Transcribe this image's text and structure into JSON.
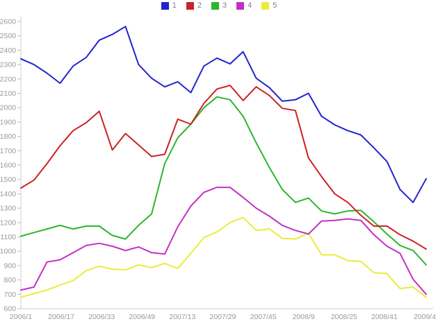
{
  "chart_data": {
    "type": "line",
    "title": "",
    "xlabel": "",
    "ylabel": "",
    "ylim": [
      600,
      2600
    ],
    "ytick_step": 100,
    "grid": false,
    "legend_position": "top",
    "axis_color": "#cccccc",
    "tick_label_color": "#999999",
    "legend_text_color": "#808080",
    "x_tick_labels": [
      "2006/1",
      "2006/17",
      "2006/33",
      "2006/49",
      "2007/13",
      "2007/29",
      "2007/45",
      "2008/9",
      "2008/25",
      "2008/41",
      "2009/4"
    ],
    "series": [
      {
        "name": "1",
        "color": "#2323cd",
        "values": [
          2340,
          2300,
          2240,
          2170,
          2290,
          2350,
          2470,
          2510,
          2565,
          2300,
          2205,
          2145,
          2180,
          2105,
          2290,
          2345,
          2305,
          2390,
          2205,
          2140,
          2045,
          2055,
          2100,
          1940,
          1880,
          1840,
          1810,
          1720,
          1625,
          1430,
          1340,
          1505
        ]
      },
      {
        "name": "2",
        "color": "#cc2222",
        "values": [
          1440,
          1495,
          1610,
          1735,
          1840,
          1895,
          1975,
          1705,
          1820,
          1740,
          1660,
          1675,
          1920,
          1885,
          2030,
          2130,
          2155,
          2050,
          2145,
          2085,
          1995,
          1980,
          1650,
          1520,
          1400,
          1340,
          1250,
          1175,
          1175,
          1115,
          1070,
          1015
        ]
      },
      {
        "name": "3",
        "color": "#2db52d",
        "values": [
          1105,
          1130,
          1155,
          1180,
          1155,
          1175,
          1175,
          1110,
          1085,
          1180,
          1260,
          1610,
          1790,
          1885,
          2000,
          2075,
          2055,
          1940,
          1755,
          1585,
          1430,
          1340,
          1370,
          1280,
          1260,
          1280,
          1285,
          1205,
          1120,
          1040,
          1005,
          905
        ]
      },
      {
        "name": "4",
        "color": "#c32fc3",
        "values": [
          730,
          750,
          925,
          940,
          990,
          1040,
          1055,
          1035,
          1005,
          1030,
          990,
          980,
          1170,
          1315,
          1410,
          1445,
          1445,
          1375,
          1300,
          1245,
          1180,
          1145,
          1120,
          1210,
          1215,
          1225,
          1215,
          1115,
          1035,
          985,
          805,
          700
        ]
      },
      {
        "name": "5",
        "color": "#ebeb3c",
        "values": [
          680,
          705,
          730,
          765,
          795,
          865,
          895,
          875,
          870,
          905,
          885,
          915,
          880,
          985,
          1095,
          1135,
          1200,
          1235,
          1145,
          1155,
          1090,
          1085,
          1125,
          975,
          975,
          935,
          930,
          850,
          845,
          740,
          750,
          680
        ]
      }
    ]
  }
}
